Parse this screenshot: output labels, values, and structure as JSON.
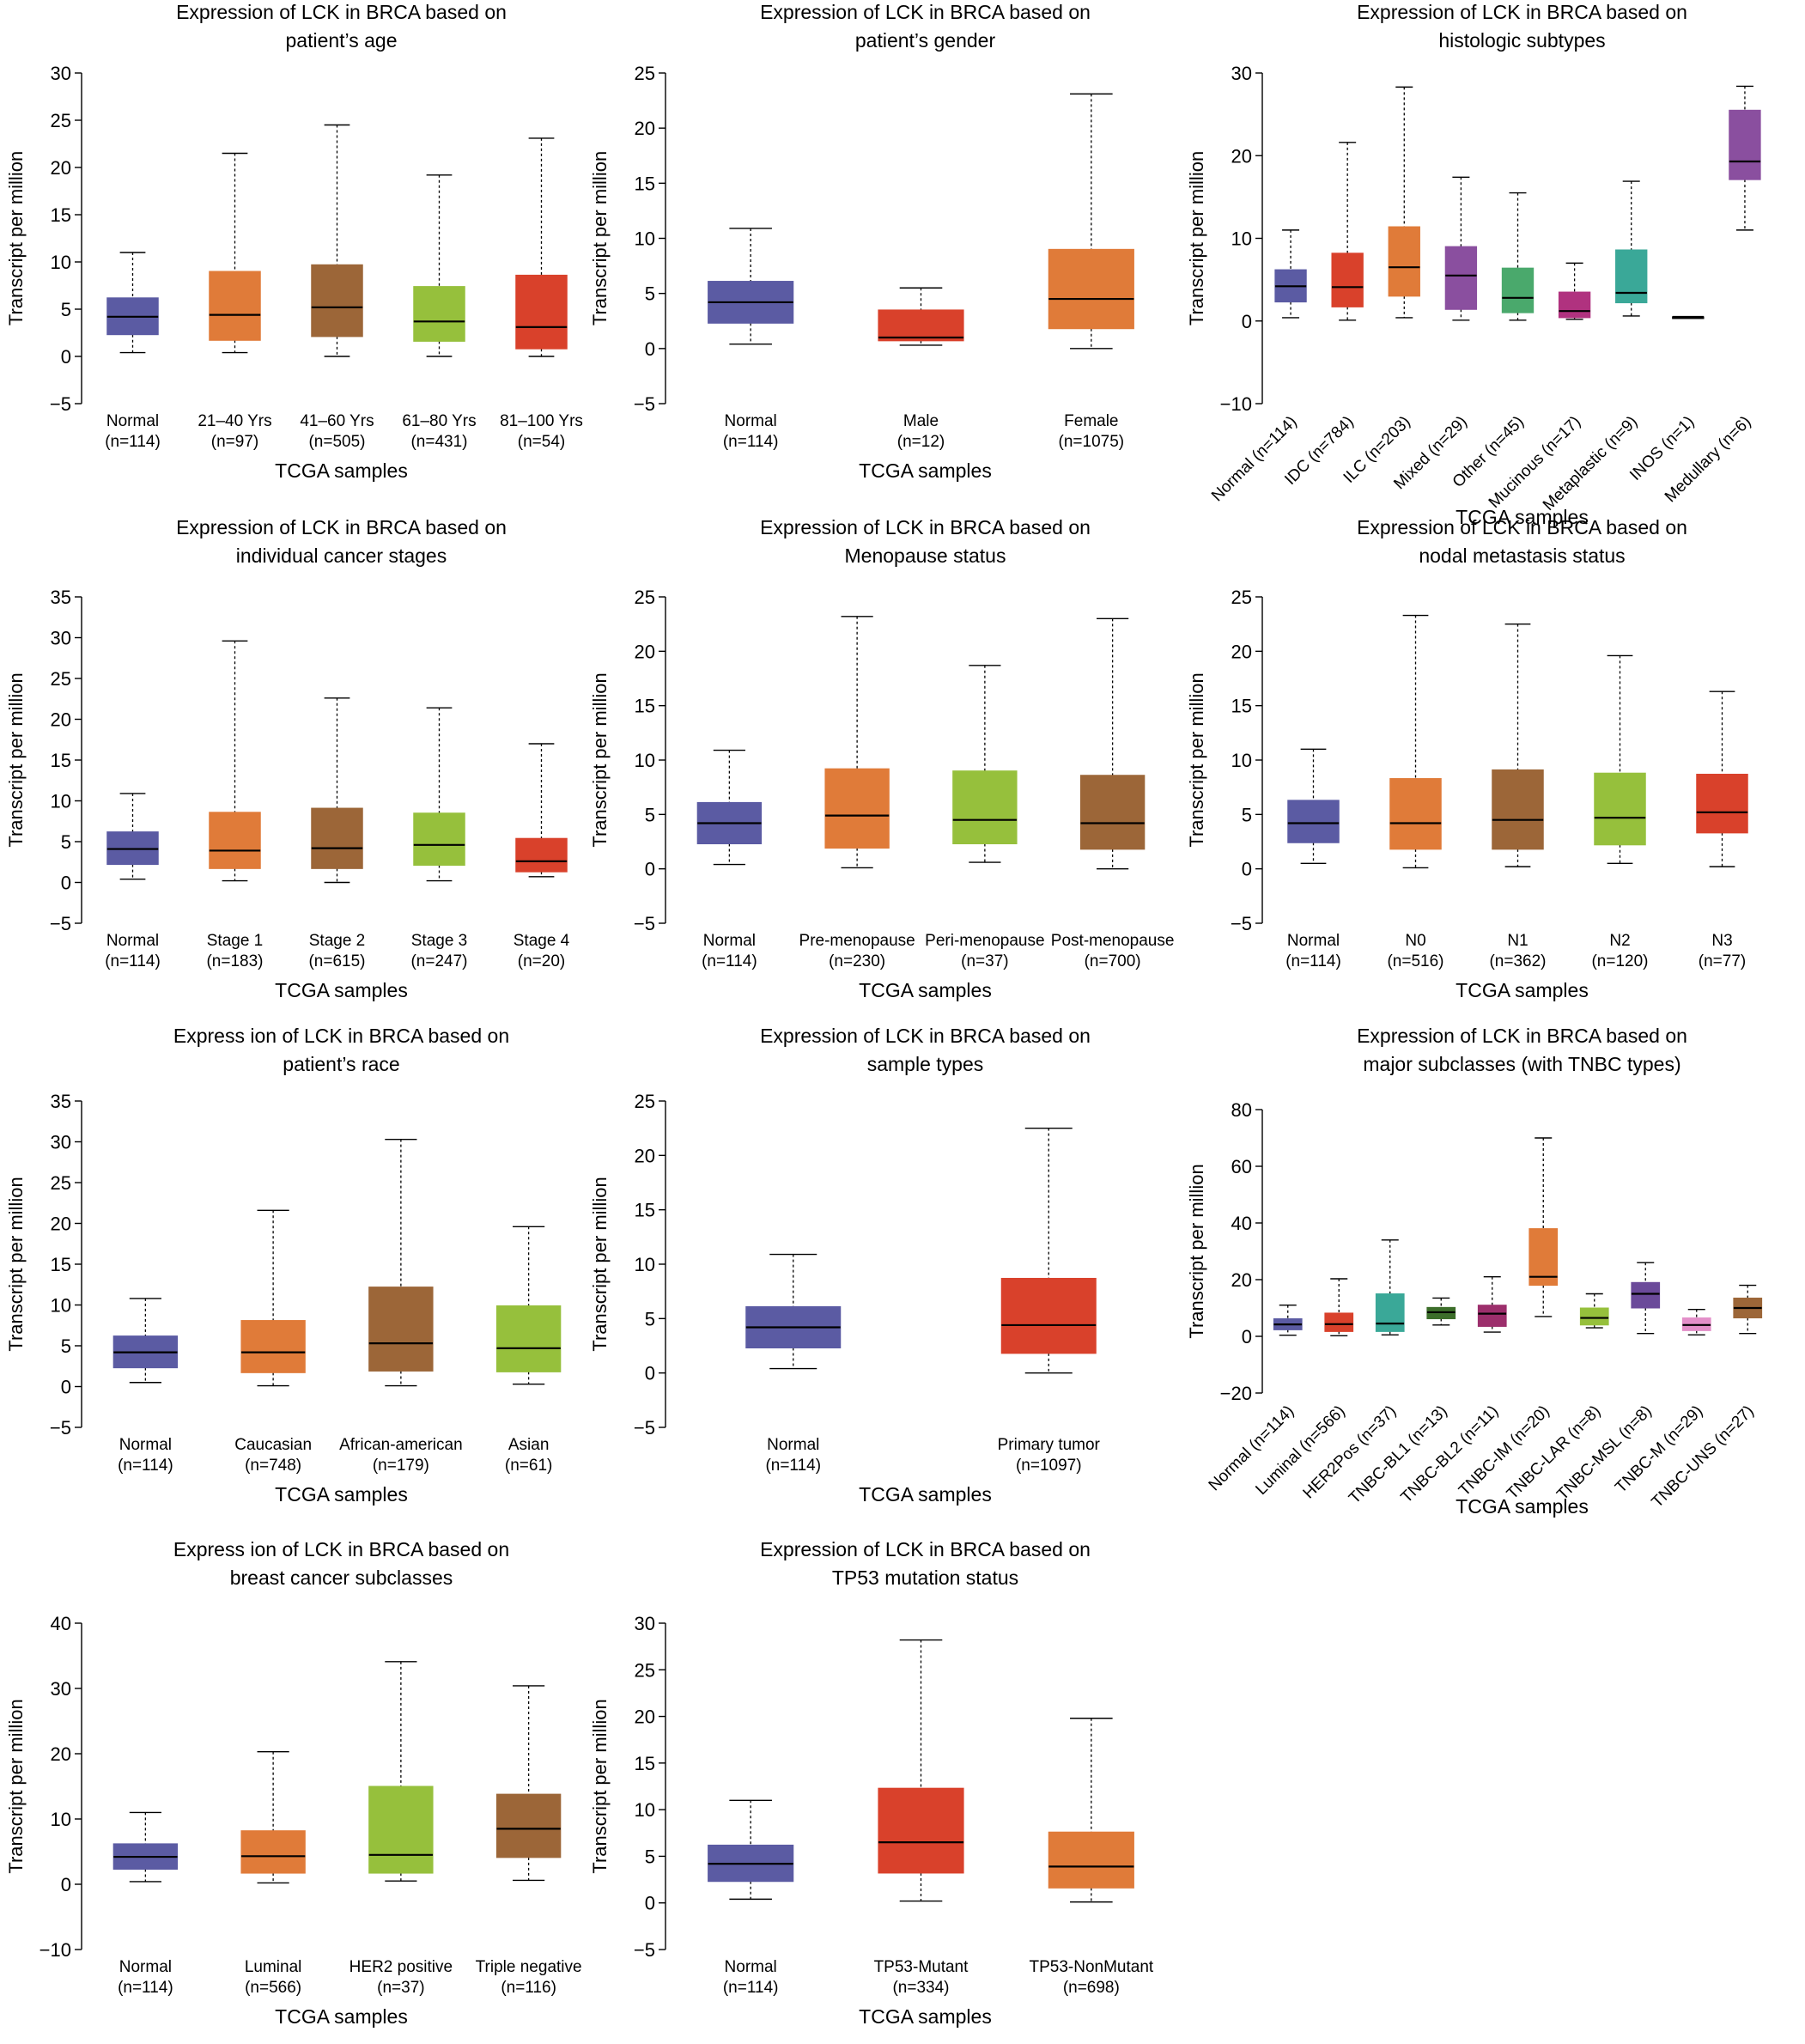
{
  "chart_data": [
    {
      "type": "boxplot",
      "title": [
        "Expression of LCK in BRCA based on",
        "patient’s age"
      ],
      "ylabel": "Transcript per million",
      "xlabel": "TCGA samples",
      "ylim": [
        -5,
        30
      ],
      "yticks": [
        -5,
        0,
        5,
        10,
        15,
        20,
        25,
        30
      ],
      "tick_labels": [
        "−5",
        "0",
        "5",
        "10",
        "15",
        "20",
        "25",
        "30"
      ],
      "categories": [
        {
          "name": "Normal",
          "n": "(n=114)",
          "color": "#5b5ba3",
          "whisker_low": 0.4,
          "q1": 2.3,
          "median": 4.2,
          "q3": 6.2,
          "whisker_high": 11.0
        },
        {
          "name": "21–40 Yrs",
          "n": "(n=97)",
          "color": "#e07b39",
          "whisker_low": 0.4,
          "q1": 1.7,
          "median": 4.4,
          "q3": 9.0,
          "whisker_high": 21.5
        },
        {
          "name": "41–60 Yrs",
          "n": "(n=505)",
          "color": "#9c6638",
          "whisker_low": 0.0,
          "q1": 2.1,
          "median": 5.2,
          "q3": 9.7,
          "whisker_high": 24.5
        },
        {
          "name": "61–80 Yrs",
          "n": "(n=431)",
          "color": "#96c03c",
          "whisker_low": 0.0,
          "q1": 1.6,
          "median": 3.7,
          "q3": 7.4,
          "whisker_high": 19.2
        },
        {
          "name": "81–100 Yrs",
          "n": "(n=54)",
          "color": "#d9412b",
          "whisker_low": 0.0,
          "q1": 0.8,
          "median": 3.1,
          "q3": 8.6,
          "whisker_high": 23.1
        }
      ]
    },
    {
      "type": "boxplot",
      "title": [
        "Expression of LCK in BRCA based on",
        "patient’s gender"
      ],
      "ylabel": "Transcript per million",
      "xlabel": "TCGA samples",
      "ylim": [
        -5,
        25
      ],
      "yticks": [
        -5,
        0,
        5,
        10,
        15,
        20,
        25
      ],
      "tick_labels": [
        "−5",
        "0",
        "5",
        "10",
        "15",
        "20",
        "25"
      ],
      "categories": [
        {
          "name": "Normal",
          "n": "(n=114)",
          "color": "#5b5ba3",
          "whisker_low": 0.4,
          "q1": 2.3,
          "median": 4.2,
          "q3": 6.1,
          "whisker_high": 10.9
        },
        {
          "name": "Male",
          "n": "(n=12)",
          "color": "#d9412b",
          "whisker_low": 0.3,
          "q1": 0.7,
          "median": 1.0,
          "q3": 3.5,
          "whisker_high": 5.5
        },
        {
          "name": "Female",
          "n": "(n=1075)",
          "color": "#e07b39",
          "whisker_low": 0.0,
          "q1": 1.8,
          "median": 4.5,
          "q3": 9.0,
          "whisker_high": 23.1
        }
      ]
    },
    {
      "type": "boxplot",
      "title": [
        "Expression of LCK in BRCA based on",
        "histologic subtypes"
      ],
      "ylabel": "Transcript per million",
      "xlabel": "TCGA samples",
      "rotate_labels": true,
      "ylim": [
        -10,
        30
      ],
      "yticks": [
        -10,
        0,
        10,
        20,
        30
      ],
      "tick_labels": [
        "−10",
        "0",
        "10",
        "20",
        "30"
      ],
      "categories": [
        {
          "name": "Normal",
          "n": "(n=114)",
          "color": "#5b5ba3",
          "whisker_low": 0.4,
          "q1": 2.3,
          "median": 4.2,
          "q3": 6.2,
          "whisker_high": 11.0
        },
        {
          "name": "IDC",
          "n": "(n=784)",
          "color": "#d9412b",
          "whisker_low": 0.1,
          "q1": 1.7,
          "median": 4.1,
          "q3": 8.2,
          "whisker_high": 21.6
        },
        {
          "name": "ILC",
          "n": "(n=203)",
          "color": "#e07b39",
          "whisker_low": 0.4,
          "q1": 3.0,
          "median": 6.5,
          "q3": 11.4,
          "whisker_high": 28.3
        },
        {
          "name": "Mixed",
          "n": "(n=29)",
          "color": "#8a4f9f",
          "whisker_low": 0.1,
          "q1": 1.4,
          "median": 5.5,
          "q3": 9.0,
          "whisker_high": 17.4
        },
        {
          "name": "Other",
          "n": "(n=45)",
          "color": "#4aa96c",
          "whisker_low": 0.1,
          "q1": 1.0,
          "median": 2.8,
          "q3": 6.4,
          "whisker_high": 15.5
        },
        {
          "name": "Mucinous",
          "n": "(n=17)",
          "color": "#b0327f",
          "whisker_low": 0.2,
          "q1": 0.4,
          "median": 1.2,
          "q3": 3.5,
          "whisker_high": 7.0
        },
        {
          "name": "Metaplastic",
          "n": "(n=9)",
          "color": "#3aa898",
          "whisker_low": 0.6,
          "q1": 2.2,
          "median": 3.4,
          "q3": 8.6,
          "whisker_high": 16.9
        },
        {
          "name": "INOS",
          "n": "(n=1)",
          "color": "#000000",
          "whisker_low": 0.5,
          "q1": 0.5,
          "median": 0.5,
          "q3": 0.5,
          "whisker_high": 0.5
        },
        {
          "name": "Medullary",
          "n": "(n=6)",
          "color": "#8a4f9f",
          "whisker_low": 11.0,
          "q1": 17.1,
          "median": 19.3,
          "q3": 25.5,
          "whisker_high": 28.4
        }
      ]
    },
    {
      "type": "boxplot",
      "title": [
        "Expression of LCK in BRCA based on",
        "individual cancer stages"
      ],
      "ylabel": "Transcript per million",
      "xlabel": "TCGA samples",
      "ylim": [
        -5,
        35
      ],
      "yticks": [
        -5,
        0,
        5,
        10,
        15,
        20,
        25,
        30,
        35
      ],
      "tick_labels": [
        "−5",
        "0",
        "5",
        "10",
        "15",
        "20",
        "25",
        "30",
        "35"
      ],
      "categories": [
        {
          "name": "Normal",
          "n": "(n=114)",
          "color": "#5b5ba3",
          "whisker_low": 0.4,
          "q1": 2.2,
          "median": 4.1,
          "q3": 6.2,
          "whisker_high": 10.9
        },
        {
          "name": "Stage 1",
          "n": "(n=183)",
          "color": "#e07b39",
          "whisker_low": 0.2,
          "q1": 1.7,
          "median": 3.9,
          "q3": 8.6,
          "whisker_high": 29.6
        },
        {
          "name": "Stage 2",
          "n": "(n=615)",
          "color": "#9c6638",
          "whisker_low": 0.0,
          "q1": 1.7,
          "median": 4.2,
          "q3": 9.1,
          "whisker_high": 22.6
        },
        {
          "name": "Stage 3",
          "n": "(n=247)",
          "color": "#96c03c",
          "whisker_low": 0.2,
          "q1": 2.1,
          "median": 4.6,
          "q3": 8.5,
          "whisker_high": 21.4
        },
        {
          "name": "Stage 4",
          "n": "(n=20)",
          "color": "#d9412b",
          "whisker_low": 0.7,
          "q1": 1.3,
          "median": 2.6,
          "q3": 5.4,
          "whisker_high": 17.0
        }
      ]
    },
    {
      "type": "boxplot",
      "title": [
        "Expression of LCK in BRCA based on",
        "Menopause status"
      ],
      "ylabel": "Transcript per million",
      "xlabel": "TCGA samples",
      "ylim": [
        -5,
        25
      ],
      "yticks": [
        -5,
        0,
        5,
        10,
        15,
        20,
        25
      ],
      "tick_labels": [
        "−5",
        "0",
        "5",
        "10",
        "15",
        "20",
        "25"
      ],
      "categories": [
        {
          "name": "Normal",
          "n": "(n=114)",
          "color": "#5b5ba3",
          "whisker_low": 0.4,
          "q1": 2.3,
          "median": 4.2,
          "q3": 6.1,
          "whisker_high": 10.9
        },
        {
          "name": "Pre-menopause",
          "n": "(n=230)",
          "color": "#e07b39",
          "whisker_low": 0.1,
          "q1": 1.9,
          "median": 4.9,
          "q3": 9.2,
          "whisker_high": 23.2
        },
        {
          "name": "Peri-menopause",
          "n": "(n=37)",
          "color": "#96c03c",
          "whisker_low": 0.6,
          "q1": 2.3,
          "median": 4.5,
          "q3": 9.0,
          "whisker_high": 18.7
        },
        {
          "name": "Post-menopause",
          "n": "(n=700)",
          "color": "#9c6638",
          "whisker_low": 0.0,
          "q1": 1.8,
          "median": 4.2,
          "q3": 8.6,
          "whisker_high": 23.0
        }
      ]
    },
    {
      "type": "boxplot",
      "title": [
        "Expression of LCK in BRCA based on",
        "nodal metastasis status"
      ],
      "ylabel": "Transcript per million",
      "xlabel": "TCGA samples",
      "ylim": [
        -5,
        25
      ],
      "yticks": [
        -5,
        0,
        5,
        10,
        15,
        20,
        25
      ],
      "tick_labels": [
        "−5",
        "0",
        "5",
        "10",
        "15",
        "20",
        "25"
      ],
      "categories": [
        {
          "name": "Normal",
          "n": "(n=114)",
          "color": "#5b5ba3",
          "whisker_low": 0.5,
          "q1": 2.4,
          "median": 4.2,
          "q3": 6.3,
          "whisker_high": 11.0
        },
        {
          "name": "N0",
          "n": "(n=516)",
          "color": "#e07b39",
          "whisker_low": 0.1,
          "q1": 1.8,
          "median": 4.2,
          "q3": 8.3,
          "whisker_high": 23.3
        },
        {
          "name": "N1",
          "n": "(n=362)",
          "color": "#9c6638",
          "whisker_low": 0.2,
          "q1": 1.8,
          "median": 4.5,
          "q3": 9.1,
          "whisker_high": 22.5
        },
        {
          "name": "N2",
          "n": "(n=120)",
          "color": "#96c03c",
          "whisker_low": 0.5,
          "q1": 2.2,
          "median": 4.7,
          "q3": 8.8,
          "whisker_high": 19.6
        },
        {
          "name": "N3",
          "n": "(n=77)",
          "color": "#d9412b",
          "whisker_low": 0.2,
          "q1": 3.3,
          "median": 5.2,
          "q3": 8.7,
          "whisker_high": 16.3
        }
      ]
    },
    {
      "type": "boxplot",
      "title": [
        "Express ion of LCK in BRCA based on",
        "patient’s race"
      ],
      "ylabel": "Transcript per million",
      "xlabel": "TCGA samples",
      "ylim": [
        -5,
        35
      ],
      "yticks": [
        -5,
        0,
        5,
        10,
        15,
        20,
        25,
        30,
        35
      ],
      "tick_labels": [
        "−5",
        "0",
        "5",
        "10",
        "15",
        "20",
        "25",
        "30",
        "35"
      ],
      "categories": [
        {
          "name": "Normal",
          "n": "(n=114)",
          "color": "#5b5ba3",
          "whisker_low": 0.5,
          "q1": 2.3,
          "median": 4.2,
          "q3": 6.2,
          "whisker_high": 10.8
        },
        {
          "name": "Caucasian",
          "n": "(n=748)",
          "color": "#e07b39",
          "whisker_low": 0.1,
          "q1": 1.7,
          "median": 4.2,
          "q3": 8.1,
          "whisker_high": 21.6
        },
        {
          "name": "African-american",
          "n": "(n=179)",
          "color": "#9c6638",
          "whisker_low": 0.1,
          "q1": 1.9,
          "median": 5.3,
          "q3": 12.2,
          "whisker_high": 30.3
        },
        {
          "name": "Asian",
          "n": "(n=61)",
          "color": "#96c03c",
          "whisker_low": 0.3,
          "q1": 1.8,
          "median": 4.7,
          "q3": 9.9,
          "whisker_high": 19.6
        }
      ]
    },
    {
      "type": "boxplot",
      "title": [
        "Expression of LCK in BRCA based on",
        "sample types"
      ],
      "ylabel": "Transcript per million",
      "xlabel": "TCGA samples",
      "ylim": [
        -5,
        25
      ],
      "yticks": [
        -5,
        0,
        5,
        10,
        15,
        20,
        25
      ],
      "tick_labels": [
        "−5",
        "0",
        "5",
        "10",
        "15",
        "20",
        "25"
      ],
      "categories": [
        {
          "name": "Normal",
          "n": "(n=114)",
          "color": "#5b5ba3",
          "whisker_low": 0.4,
          "q1": 2.3,
          "median": 4.2,
          "q3": 6.1,
          "whisker_high": 10.9
        },
        {
          "name": "Primary tumor",
          "n": "(n=1097)",
          "color": "#d9412b",
          "whisker_low": 0.0,
          "q1": 1.8,
          "median": 4.4,
          "q3": 8.7,
          "whisker_high": 22.5
        }
      ]
    },
    {
      "type": "boxplot",
      "title": [
        "Expression of LCK in BRCA based on",
        "major subclasses (with TNBC types)"
      ],
      "ylabel": "Transcript per million",
      "xlabel": "TCGA samples",
      "rotate_labels": true,
      "ylim": [
        -20,
        80
      ],
      "yticks": [
        -20,
        0,
        20,
        40,
        60,
        80
      ],
      "tick_labels": [
        "−20",
        "0",
        "20",
        "40",
        "60",
        "80"
      ],
      "categories": [
        {
          "name": "Normal",
          "n": "(n=114)",
          "color": "#5b5ba3",
          "whisker_low": 0.4,
          "q1": 2.3,
          "median": 4.2,
          "q3": 6.2,
          "whisker_high": 11.0
        },
        {
          "name": "Luminal",
          "n": "(n=566)",
          "color": "#d9412b",
          "whisker_low": 0.2,
          "q1": 1.7,
          "median": 4.3,
          "q3": 8.2,
          "whisker_high": 20.3
        },
        {
          "name": "HER2Pos",
          "n": "(n=37)",
          "color": "#3aa898",
          "whisker_low": 0.5,
          "q1": 1.7,
          "median": 4.5,
          "q3": 15.0,
          "whisker_high": 34.0
        },
        {
          "name": "TNBC-BL1",
          "n": "(n=13)",
          "color": "#3c6e2a",
          "whisker_low": 4.0,
          "q1": 6.2,
          "median": 8.5,
          "q3": 10.2,
          "whisker_high": 13.5
        },
        {
          "name": "TNBC-BL2",
          "n": "(n=11)",
          "color": "#9c2f6c",
          "whisker_low": 1.5,
          "q1": 3.5,
          "median": 8.0,
          "q3": 11.0,
          "whisker_high": 21.0
        },
        {
          "name": "TNBC-IM",
          "n": "(n=20)",
          "color": "#e07b39",
          "whisker_low": 7.0,
          "q1": 18.0,
          "median": 21.0,
          "q3": 38.0,
          "whisker_high": 70.0
        },
        {
          "name": "TNBC-LAR",
          "n": "(n=8)",
          "color": "#96c03c",
          "whisker_low": 3.0,
          "q1": 4.0,
          "median": 6.5,
          "q3": 10.0,
          "whisker_high": 15.0
        },
        {
          "name": "TNBC-MSL",
          "n": "(n=8)",
          "color": "#6b4a9a",
          "whisker_low": 1.0,
          "q1": 10.0,
          "median": 15.0,
          "q3": 19.0,
          "whisker_high": 26.0
        },
        {
          "name": "TNBC-M",
          "n": "(n=29)",
          "color": "#e38fc9",
          "whisker_low": 0.5,
          "q1": 2.0,
          "median": 4.0,
          "q3": 6.5,
          "whisker_high": 9.5
        },
        {
          "name": "TNBC-UNS",
          "n": "(n=27)",
          "color": "#9c6638",
          "whisker_low": 1.0,
          "q1": 6.5,
          "median": 10.0,
          "q3": 13.5,
          "whisker_high": 18.0
        }
      ]
    },
    {
      "type": "boxplot",
      "title": [
        "Express ion of LCK in BRCA based on",
        "breast cancer subclasses"
      ],
      "ylabel": "Transcript per million",
      "xlabel": "TCGA samples",
      "ylim": [
        -10,
        40
      ],
      "yticks": [
        -10,
        0,
        10,
        20,
        30,
        40
      ],
      "tick_labels": [
        "−10",
        "0",
        "10",
        "20",
        "30",
        "40"
      ],
      "categories": [
        {
          "name": "Normal",
          "n": "(n=114)",
          "color": "#5b5ba3",
          "whisker_low": 0.4,
          "q1": 2.3,
          "median": 4.2,
          "q3": 6.2,
          "whisker_high": 11.0
        },
        {
          "name": "Luminal",
          "n": "(n=566)",
          "color": "#e07b39",
          "whisker_low": 0.2,
          "q1": 1.7,
          "median": 4.3,
          "q3": 8.2,
          "whisker_high": 20.3
        },
        {
          "name": "HER2 positive",
          "n": "(n=37)",
          "color": "#96c03c",
          "whisker_low": 0.5,
          "q1": 1.7,
          "median": 4.5,
          "q3": 15.0,
          "whisker_high": 34.1
        },
        {
          "name": "Triple negative",
          "n": "(n=116)",
          "color": "#9c6638",
          "whisker_low": 0.6,
          "q1": 4.1,
          "median": 8.5,
          "q3": 13.8,
          "whisker_high": 30.4
        }
      ]
    },
    {
      "type": "boxplot",
      "title": [
        "Expression of LCK in BRCA based on",
        "TP53 mutation status"
      ],
      "ylabel": "Transcript per million",
      "xlabel": "TCGA samples",
      "ylim": [
        -5,
        30
      ],
      "yticks": [
        -5,
        0,
        5,
        10,
        15,
        20,
        25,
        30
      ],
      "tick_labels": [
        "−5",
        "0",
        "5",
        "10",
        "15",
        "20",
        "25",
        "30"
      ],
      "categories": [
        {
          "name": "Normal",
          "n": "(n=114)",
          "color": "#5b5ba3",
          "whisker_low": 0.4,
          "q1": 2.3,
          "median": 4.2,
          "q3": 6.2,
          "whisker_high": 11.0
        },
        {
          "name": "TP53-Mutant",
          "n": "(n=334)",
          "color": "#d9412b",
          "whisker_low": 0.2,
          "q1": 3.2,
          "median": 6.5,
          "q3": 12.3,
          "whisker_high": 28.2
        },
        {
          "name": "TP53-NonMutant",
          "n": "(n=698)",
          "color": "#e07b39",
          "whisker_low": 0.1,
          "q1": 1.6,
          "median": 3.9,
          "q3": 7.6,
          "whisker_high": 19.8
        }
      ]
    }
  ]
}
